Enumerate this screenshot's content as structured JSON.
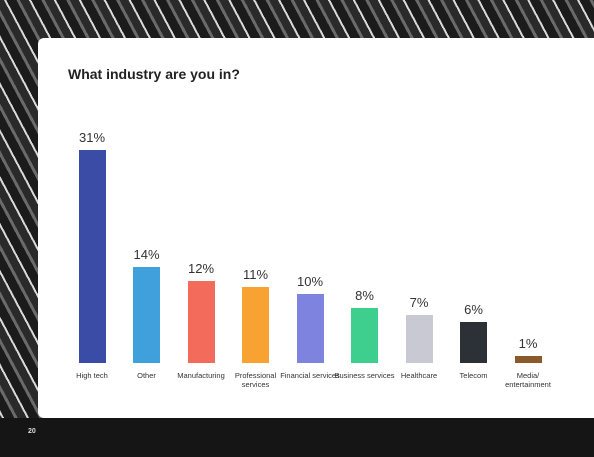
{
  "chart_data": {
    "type": "bar",
    "title": "What industry are you in?",
    "categories": [
      "High tech",
      "Other",
      "Manufacturing",
      "Professional services",
      "Financial services",
      "Business services",
      "Healthcare",
      "Telecom",
      "Media/ entertainment"
    ],
    "values": [
      31,
      14,
      12,
      11,
      10,
      8,
      7,
      6,
      1
    ],
    "value_labels": [
      "31%",
      "14%",
      "12%",
      "11%",
      "10%",
      "8%",
      "7%",
      "6%",
      "1%"
    ],
    "colors": [
      "#3a4ca6",
      "#3fa0dc",
      "#f26b5b",
      "#f7a231",
      "#7f83e0",
      "#3ecf8e",
      "#c8c9d3",
      "#2c3138",
      "#8a5a2c"
    ]
  },
  "page_number": "20"
}
